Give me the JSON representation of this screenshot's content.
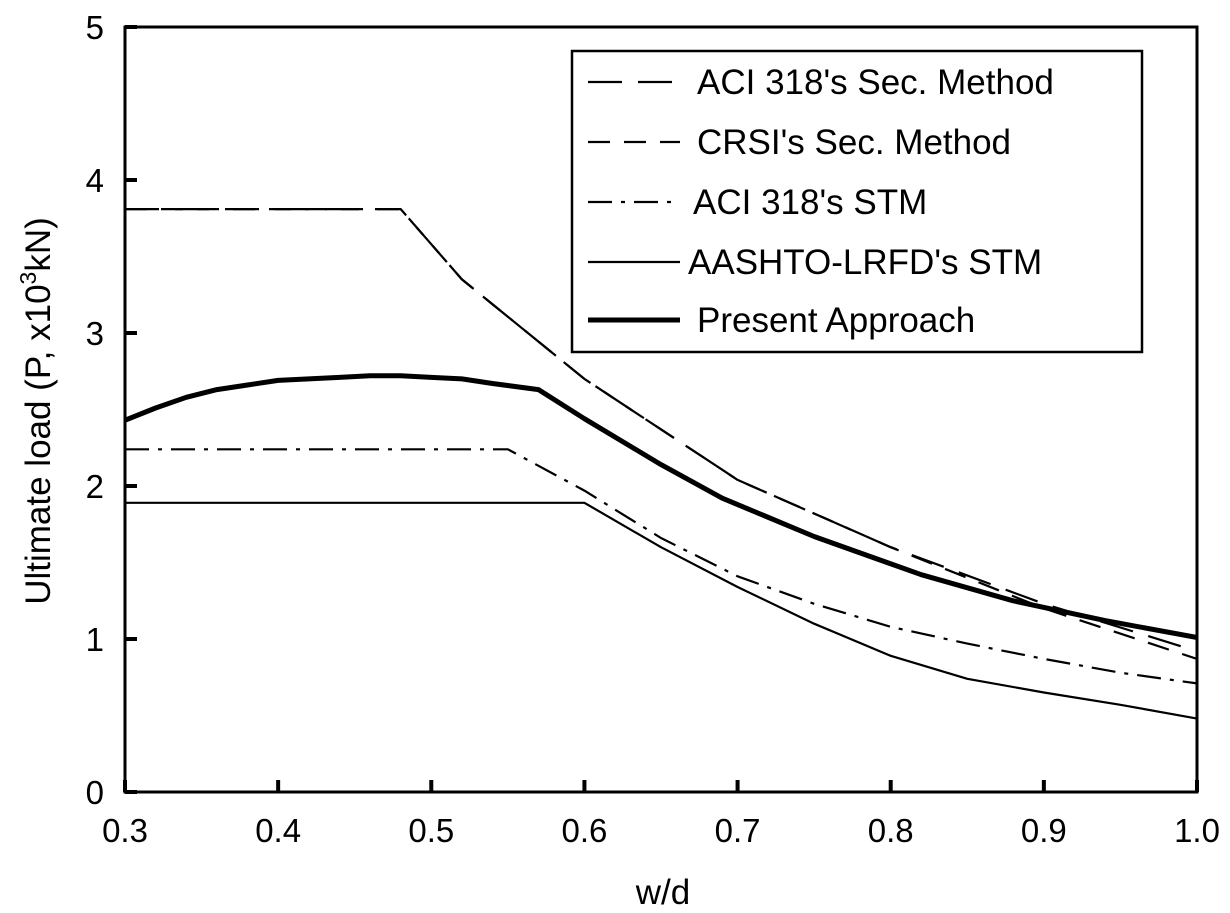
{
  "chart_data": {
    "type": "line",
    "title": "",
    "xlabel": "w/d",
    "ylabel": "Ultimate load (P, x10",
    "ylabel_superscript": "3",
    "ylabel_suffix": "kN)",
    "xlim": [
      0.3,
      1.0
    ],
    "ylim": [
      0,
      5
    ],
    "x_ticks": [
      0.3,
      0.4,
      0.5,
      0.6,
      0.7,
      0.8,
      0.9,
      1.0
    ],
    "x_tick_labels": [
      "0.3",
      "0.4",
      "0.5",
      "0.6",
      "0.7",
      "0.8",
      "0.9",
      "1.0"
    ],
    "y_ticks": [
      0,
      1,
      2,
      3,
      4,
      5
    ],
    "y_tick_labels": [
      "0",
      "1",
      "2",
      "3",
      "4",
      "5"
    ],
    "grid": false,
    "legend_position": "top-right",
    "series": [
      {
        "name": "ACI 318's Sec. Method",
        "style": "long-dash",
        "x": [
          0.3,
          0.48,
          0.52,
          0.6,
          0.7,
          0.8,
          0.9,
          1.0
        ],
        "y": [
          3.81,
          3.81,
          3.35,
          2.7,
          2.04,
          1.6,
          1.23,
          0.92
        ]
      },
      {
        "name": "CRSI's Sec. Method",
        "style": "dash",
        "x": [
          0.3,
          0.48,
          0.52,
          0.6,
          0.7,
          0.8,
          0.9,
          1.0
        ],
        "y": [
          3.81,
          3.81,
          3.35,
          2.7,
          2.04,
          1.6,
          1.2,
          0.87
        ]
      },
      {
        "name": "ACI 318's STM",
        "style": "dash-dot",
        "x": [
          0.3,
          0.55,
          0.6,
          0.65,
          0.7,
          0.75,
          0.8,
          0.85,
          0.9,
          0.95,
          1.0
        ],
        "y": [
          2.24,
          2.24,
          1.97,
          1.66,
          1.41,
          1.23,
          1.08,
          0.97,
          0.87,
          0.78,
          0.71
        ]
      },
      {
        "name": "AASHTO-LRFD's STM",
        "style": "solid-thin",
        "x": [
          0.3,
          0.6,
          0.65,
          0.7,
          0.75,
          0.8,
          0.85,
          0.9,
          0.95,
          1.0
        ],
        "y": [
          1.89,
          1.89,
          1.6,
          1.34,
          1.1,
          0.89,
          0.74,
          0.65,
          0.57,
          0.48
        ]
      },
      {
        "name": "Present Approach",
        "style": "solid-thick",
        "x": [
          0.3,
          0.32,
          0.34,
          0.36,
          0.38,
          0.4,
          0.42,
          0.44,
          0.46,
          0.48,
          0.5,
          0.52,
          0.54,
          0.57,
          0.6,
          0.65,
          0.69,
          0.75,
          0.82,
          0.88,
          0.94,
          1.0
        ],
        "y": [
          2.43,
          2.51,
          2.58,
          2.63,
          2.66,
          2.69,
          2.7,
          2.71,
          2.72,
          2.72,
          2.71,
          2.7,
          2.67,
          2.63,
          2.44,
          2.14,
          1.92,
          1.67,
          1.42,
          1.25,
          1.12,
          1.01
        ]
      }
    ]
  }
}
